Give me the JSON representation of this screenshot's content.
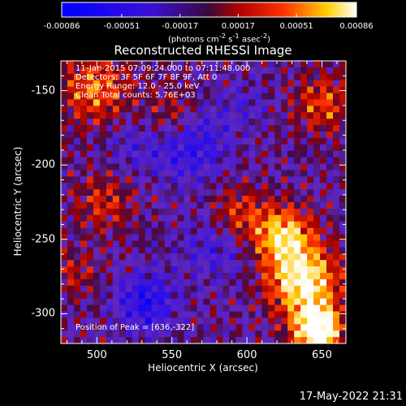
{
  "chart_data": {
    "type": "heatmap",
    "title": "Reconstructed RHESSI Image",
    "xlabel": "Heliocentric X (arcsec)",
    "ylabel": "Heliocentric Y (arcsec)",
    "xlim": [
      476,
      666
    ],
    "ylim": [
      -320,
      -130
    ],
    "xticks": [
      "500",
      "550",
      "600",
      "650"
    ],
    "xtick_values": [
      500,
      550,
      600,
      650
    ],
    "yticks": [
      "-150",
      "-200",
      "-250",
      "-300"
    ],
    "ytick_values": [
      -150,
      -200,
      -250,
      -300
    ],
    "colorbar": {
      "ticks": [
        "-0.00086",
        "-0.00051",
        "-0.00017",
        "0.00017",
        "0.00051",
        "0.00086"
      ],
      "tick_values": [
        -0.00086,
        -0.00051,
        -0.00017,
        0.00017,
        0.00051,
        0.00086
      ],
      "range": [
        -0.00086,
        0.00086
      ],
      "units_text": "(photons cm",
      "units_exp1": "-2",
      "units_mid": " s",
      "units_exp2": "-1",
      "units_mid2": " asec",
      "units_exp3": "-2",
      "units_close": ")",
      "colormap": "blue-purple-red-yellow-white"
    },
    "annotations": [
      "11-Jan-2015 07:09:24.000 to 07:11:48.000",
      "Detectors: 3F 5F 6F 7F 8F 9F, Att 0",
      "Energy Range: 12.0 - 25.0 keV",
      "Clean     Total counts: 5.76E+03"
    ],
    "peak_text": "Position of Peak = [636,-322]",
    "peak": [
      636,
      -322
    ],
    "timestamp": "17-May-2022 21:31"
  }
}
